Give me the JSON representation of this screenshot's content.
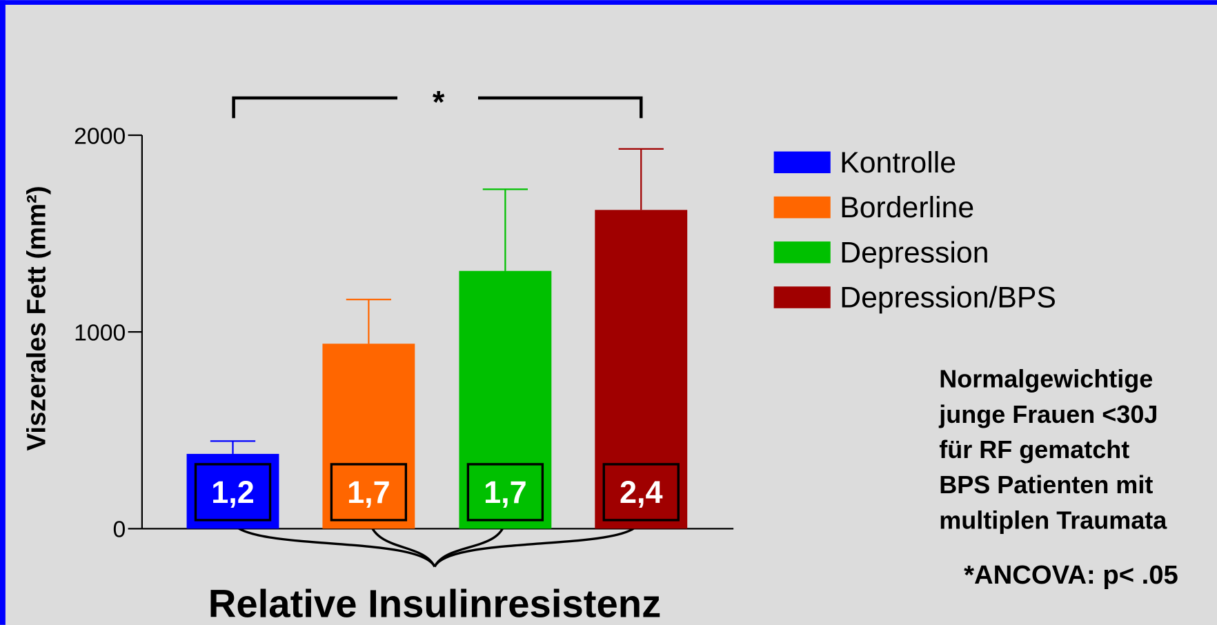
{
  "chart_data": {
    "type": "bar",
    "ylabel": "Viszerales Fett (mm²)",
    "xlabel": "Relative Insulinresistenz",
    "categories": [
      "Kontrolle",
      "Borderline",
      "Depression",
      "Depression/BPS"
    ],
    "values": [
      380,
      940,
      1310,
      1620
    ],
    "errors": [
      65,
      225,
      415,
      310
    ],
    "colors": [
      "#0000ff",
      "#ff6600",
      "#00c000",
      "#a00000"
    ],
    "insulin_labels": [
      "1,2",
      "1,7",
      "1,7",
      "2,4"
    ],
    "significance": "*",
    "notes": [
      "Normalgewichtige",
      "junge Frauen <30J",
      "für RF gematcht",
      "BPS Patienten mit",
      "multiplen Traumata"
    ],
    "stats_note": "*ANCOVA: p< .05",
    "ylim": [
      0,
      2000
    ],
    "yticks": [
      0,
      1000,
      2000
    ],
    "legend": "right"
  }
}
